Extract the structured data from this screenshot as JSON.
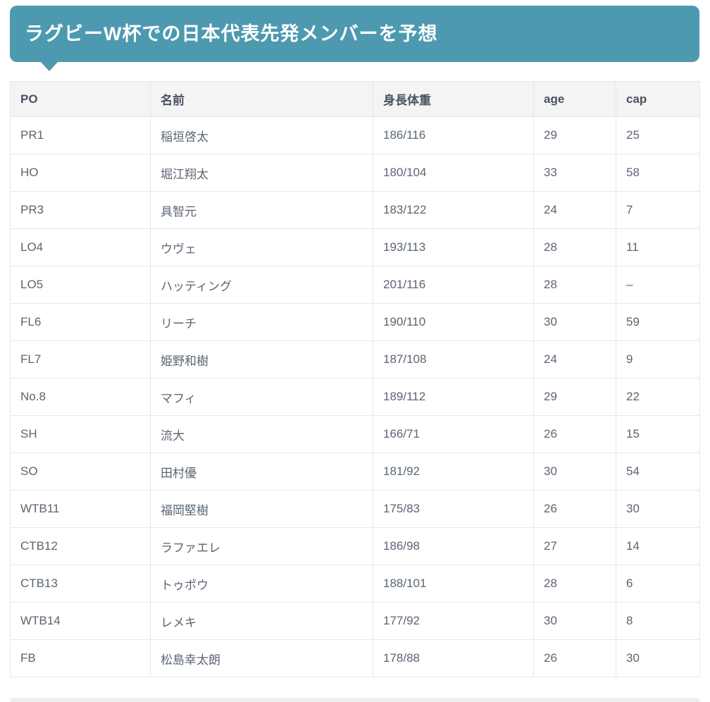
{
  "banner": {
    "title": "ラグビーW杯での日本代表先発メンバーを予想",
    "background_color": "#4d9ab0",
    "text_color": "#ffffff"
  },
  "table": {
    "columns": [
      "PO",
      "名前",
      "身長体重",
      "age",
      "cap"
    ],
    "rows": [
      [
        "PR1",
        "稲垣啓太",
        "186/116",
        "29",
        "25"
      ],
      [
        "HO",
        "堀江翔太",
        "180/104",
        "33",
        "58"
      ],
      [
        "PR3",
        "具智元",
        "183/122",
        "24",
        "7"
      ],
      [
        "LO4",
        "ウヴェ",
        "193/113",
        "28",
        "11"
      ],
      [
        "LO5",
        "ハッティング",
        "201/116",
        "28",
        "–"
      ],
      [
        "FL6",
        "リーチ",
        "190/110",
        "30",
        "59"
      ],
      [
        "FL7",
        "姫野和樹",
        "187/108",
        "24",
        "9"
      ],
      [
        "No.8",
        "マフィ",
        "189/112",
        "29",
        "22"
      ],
      [
        "SH",
        "流大",
        "166/71",
        "26",
        "15"
      ],
      [
        "SO",
        "田村優",
        "181/92",
        "30",
        "54"
      ],
      [
        "WTB11",
        "福岡堅樹",
        "175/83",
        "26",
        "30"
      ],
      [
        "CTB12",
        "ラファエレ",
        "186/98",
        "27",
        "14"
      ],
      [
        "CTB13",
        "トゥポウ",
        "188/101",
        "28",
        "6"
      ],
      [
        "WTB14",
        "レメキ",
        "177/92",
        "30",
        "8"
      ],
      [
        "FB",
        "松島幸太朗",
        "178/88",
        "26",
        "30"
      ]
    ],
    "header_bg": "#f4f4f5",
    "border_color": "#e5e7e7",
    "cell_text_color": "#5a6572"
  }
}
